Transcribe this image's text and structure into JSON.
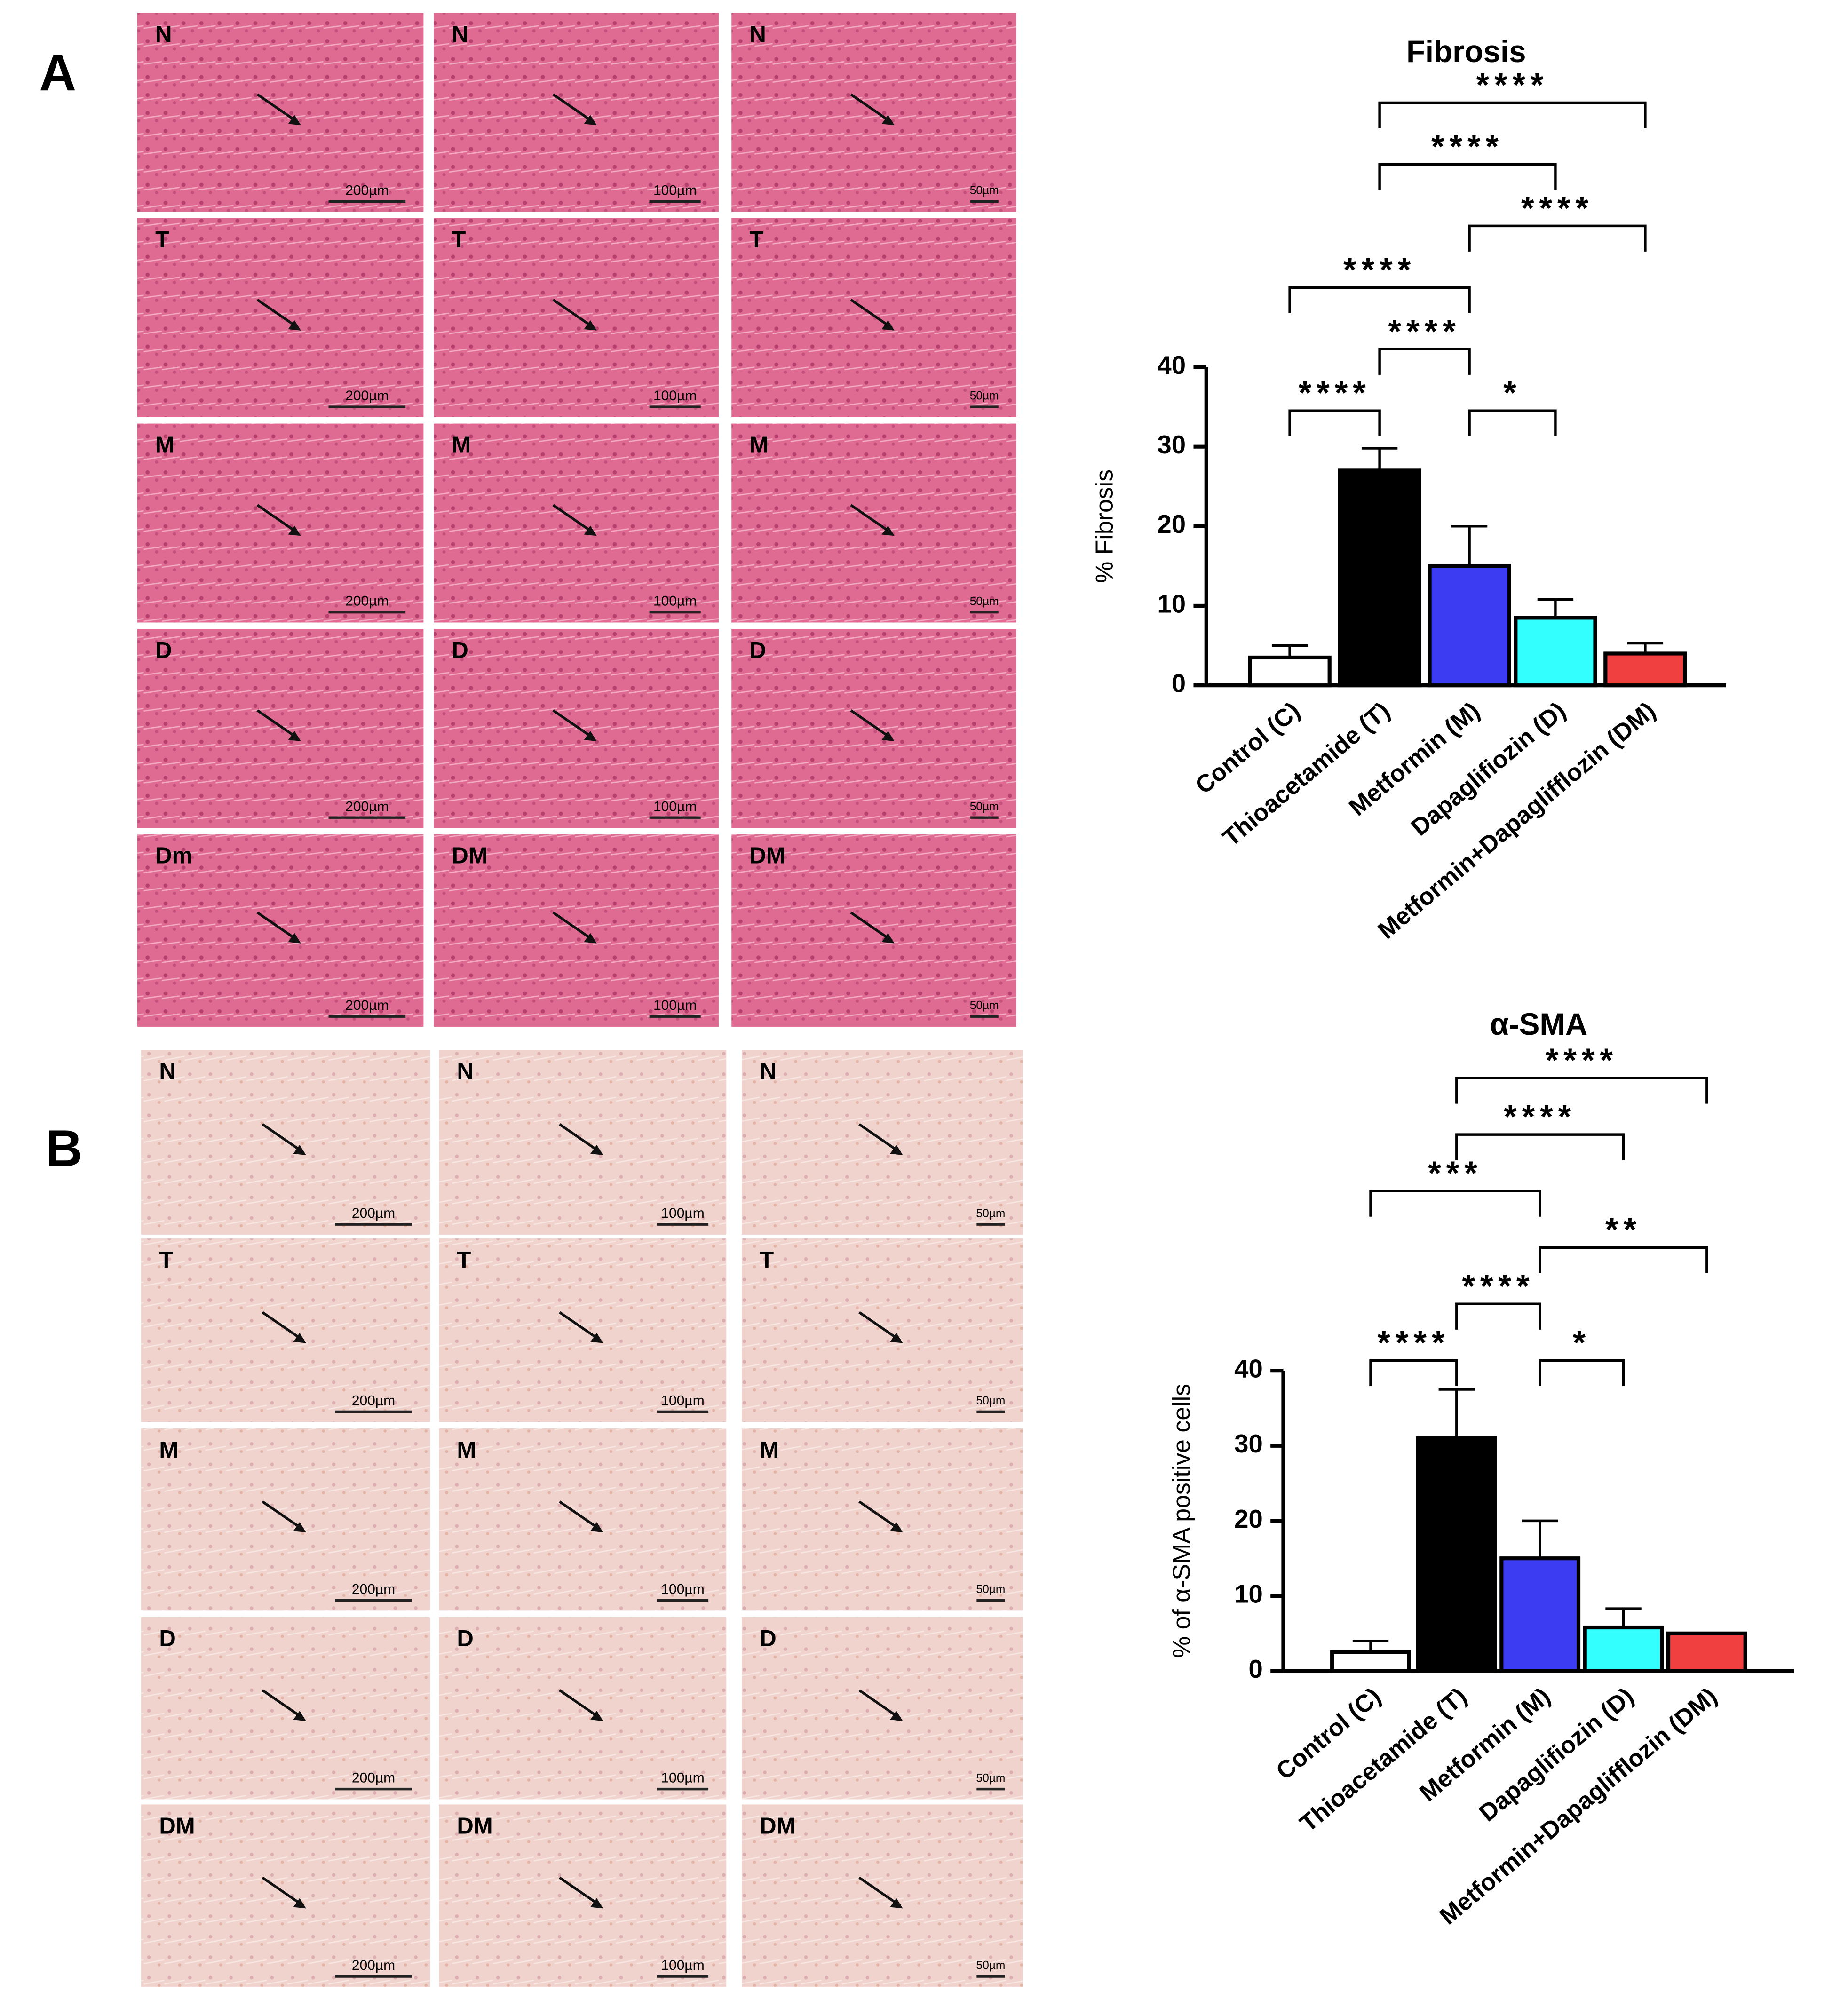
{
  "panels": [
    {
      "label": "A",
      "rows": [
        [
          "N",
          "N",
          "N"
        ],
        [
          "T",
          "T",
          "T"
        ],
        [
          "M",
          "M",
          "M"
        ],
        [
          "D",
          "D",
          "D"
        ],
        [
          "Dm",
          "DM",
          "DM"
        ]
      ],
      "scales": [
        "200µm",
        "100µm",
        "50µm"
      ]
    },
    {
      "label": "B",
      "rows": [
        [
          "N",
          "N",
          "N"
        ],
        [
          "T",
          "T",
          "T"
        ],
        [
          "M",
          "M",
          "M"
        ],
        [
          "D",
          "D",
          "D"
        ],
        [
          "DM",
          "DM",
          "DM"
        ]
      ],
      "scales": [
        "200µm",
        "100µm",
        "50µm"
      ]
    }
  ],
  "chart_data": [
    {
      "type": "bar",
      "title": "Fibrosis",
      "ylabel": "% Fibrosis",
      "categories": [
        "Control (C)",
        "Thioacetamide (T)",
        "Metformin (M)",
        "Dapaglifiozin (D)",
        "Metformin+Dapaglifflozin (DM)"
      ],
      "values": [
        3.5,
        27,
        15,
        8.5,
        4
      ],
      "errors": [
        1.5,
        2.8,
        5,
        2.3,
        1.3
      ],
      "colors": [
        "#ffffff",
        "#000000",
        "#3c3cf2",
        "#33ffff",
        "#f04040"
      ],
      "ylim": [
        0,
        40
      ],
      "yticks": [
        0,
        10,
        20,
        30,
        40
      ],
      "annotations": [
        {
          "text": "****",
          "from": 0,
          "to": 1
        },
        {
          "text": "*",
          "from": 2,
          "to": 3
        },
        {
          "text": "****",
          "from": 1,
          "to": 2
        },
        {
          "text": "****",
          "from": 0,
          "to": 2
        },
        {
          "text": "****",
          "from": 2,
          "to": 4
        },
        {
          "text": "****",
          "from": 1,
          "to": 3
        },
        {
          "text": "****",
          "from": 1,
          "to": 4
        }
      ]
    },
    {
      "type": "bar",
      "title": "α-SMA",
      "ylabel": "% of α-SMA positive cells",
      "categories": [
        "Control (C)",
        "Thioacetamide (T)",
        "Metformin (M)",
        "Dapaglifiozin (D)",
        "Metformin+Dapaglifflozin (DM)"
      ],
      "values": [
        2.5,
        31,
        15,
        5.8,
        5
      ],
      "errors": [
        1.5,
        6.5,
        5,
        2.5,
        0
      ],
      "colors": [
        "#ffffff",
        "#000000",
        "#3c3cf2",
        "#33ffff",
        "#f04040"
      ],
      "ylim": [
        0,
        40
      ],
      "yticks": [
        0,
        10,
        20,
        30,
        40
      ],
      "annotations": [
        {
          "text": "****",
          "from": 0,
          "to": 1
        },
        {
          "text": "*",
          "from": 2,
          "to": 3
        },
        {
          "text": "****",
          "from": 1,
          "to": 2
        },
        {
          "text": "**",
          "from": 2,
          "to": 4
        },
        {
          "text": "***",
          "from": 0,
          "to": 2
        },
        {
          "text": "****",
          "from": 1,
          "to": 3
        },
        {
          "text": "****",
          "from": 1,
          "to": 4
        }
      ]
    }
  ]
}
